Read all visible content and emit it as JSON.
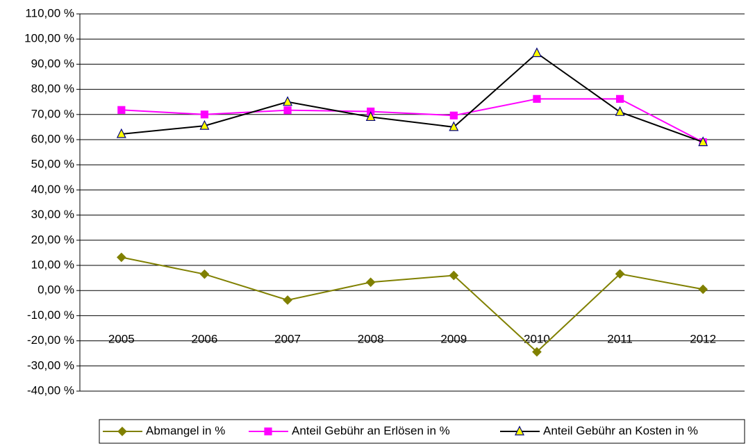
{
  "chart_data": {
    "type": "line",
    "categories": [
      "2005",
      "2006",
      "2007",
      "2008",
      "2009",
      "2010",
      "2011",
      "2012"
    ],
    "series": [
      {
        "name": "Abmangel in %",
        "color": "#808000",
        "marker": "diamond",
        "marker_fill": "#808000",
        "marker_stroke": "#808000",
        "values": [
          13.2,
          6.5,
          -3.8,
          3.3,
          6.0,
          -24.4,
          6.6,
          0.5
        ]
      },
      {
        "name": "Anteil Gebühr an Erlösen in %",
        "color": "#ff00ff",
        "marker": "square",
        "marker_fill": "#ff00ff",
        "marker_stroke": "#ff00ff",
        "values": [
          71.8,
          70.0,
          71.7,
          71.2,
          69.6,
          76.2,
          76.2,
          59.0
        ]
      },
      {
        "name": "Anteil Gebühr an Kosten in %",
        "color": "#000000",
        "marker": "triangle",
        "marker_fill": "#ffff00",
        "marker_stroke": "#000080",
        "values": [
          62.2,
          65.5,
          75.0,
          69.0,
          65.0,
          94.4,
          71.0,
          59.0
        ]
      }
    ],
    "ylim": [
      -40,
      110
    ],
    "yticks": [
      {
        "value": -40,
        "label": "-40,00 %"
      },
      {
        "value": -30,
        "label": "-30,00 %"
      },
      {
        "value": -20,
        "label": "-20,00 %"
      },
      {
        "value": -10,
        "label": "-10,00 %"
      },
      {
        "value": 0,
        "label": "0,00 %"
      },
      {
        "value": 10,
        "label": "10,00 %"
      },
      {
        "value": 20,
        "label": "20,00 %"
      },
      {
        "value": 30,
        "label": "30,00 %"
      },
      {
        "value": 40,
        "label": "40,00 %"
      },
      {
        "value": 50,
        "label": "50,00 %"
      },
      {
        "value": 60,
        "label": "60,00 %"
      },
      {
        "value": 70,
        "label": "70,00 %"
      },
      {
        "value": 80,
        "label": "80,00 %"
      },
      {
        "value": 90,
        "label": "90,00 %"
      },
      {
        "value": 100,
        "label": "100,00 %"
      },
      {
        "value": 110,
        "label": "110,00 %"
      }
    ],
    "grid": true,
    "legend": "bottom"
  }
}
